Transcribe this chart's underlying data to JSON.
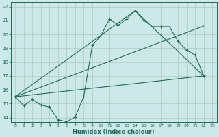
{
  "xlabel": "Humidex (Indice chaleur)",
  "bg_color": "#cde8e8",
  "line_color": "#1a6b5a",
  "grid_color": "#aec8c8",
  "xlim": [
    -0.5,
    23.5
  ],
  "ylim": [
    13.7,
    22.3
  ],
  "xticks": [
    0,
    1,
    2,
    3,
    4,
    5,
    6,
    7,
    8,
    9,
    10,
    11,
    12,
    13,
    14,
    15,
    16,
    17,
    18,
    19,
    20,
    21,
    22,
    23
  ],
  "yticks": [
    14,
    15,
    16,
    17,
    18,
    19,
    20,
    21,
    22
  ],
  "line1_x": [
    0,
    1,
    2,
    3,
    4,
    5,
    6,
    7,
    8,
    9,
    10,
    11,
    12,
    13,
    14,
    15,
    16,
    17,
    18,
    19,
    20,
    21,
    22
  ],
  "line1_y": [
    15.5,
    14.85,
    15.3,
    14.9,
    14.75,
    13.85,
    13.7,
    14.05,
    15.5,
    19.2,
    19.9,
    21.1,
    20.65,
    21.1,
    21.7,
    21.0,
    20.55,
    20.55,
    20.55,
    19.5,
    18.85,
    18.5,
    17.0
  ],
  "line2_x": [
    0,
    22
  ],
  "line2_y": [
    15.5,
    17.0
  ],
  "line3_x": [
    0,
    22
  ],
  "line3_y": [
    15.5,
    20.6
  ],
  "line4_x": [
    0,
    14,
    22
  ],
  "line4_y": [
    15.5,
    21.7,
    17.0
  ],
  "figsize": [
    3.2,
    2.0
  ],
  "dpi": 100
}
